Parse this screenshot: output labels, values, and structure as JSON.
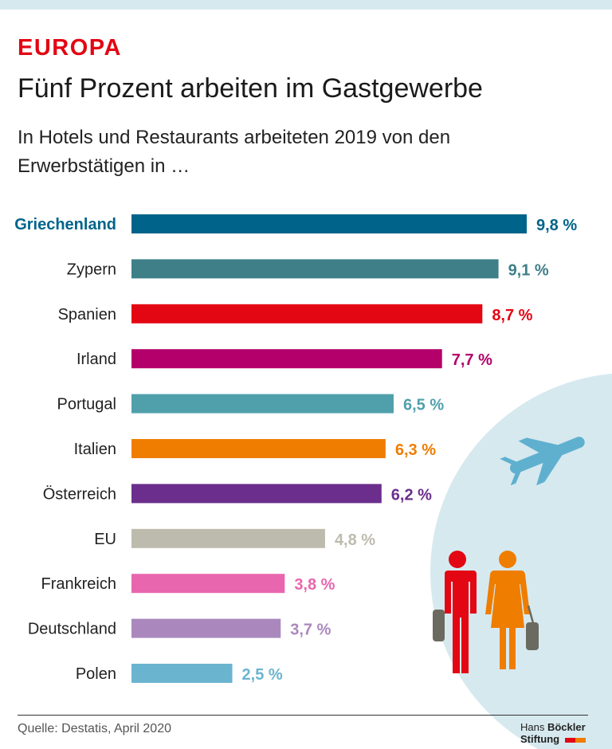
{
  "header": {
    "kicker": "EUROPA",
    "title": "Fünf Prozent arbeiten im Gastgewerbe",
    "subtitle": "In Hotels und Restaurants arbeiteten 2019 von den Erwerbstätigen in …"
  },
  "chart_data": {
    "type": "bar",
    "orientation": "horizontal",
    "categories": [
      "Griechenland",
      "Zypern",
      "Spanien",
      "Irland",
      "Portugal",
      "Italien",
      "Österreich",
      "EU",
      "Frankreich",
      "Deutschland",
      "Polen"
    ],
    "values": [
      9.8,
      9.1,
      8.7,
      7.7,
      6.5,
      6.3,
      6.2,
      4.8,
      3.8,
      3.7,
      2.5
    ],
    "labels": [
      "9,8 %",
      "9,1 %",
      "8,7 %",
      "7,7 %",
      "6,5 %",
      "6,3 %",
      "6,2 %",
      "4,8 %",
      "3,8 %",
      "3,7 %",
      "2,5 %"
    ],
    "colors": [
      "#00648a",
      "#3e7f88",
      "#e30613",
      "#b4006a",
      "#50a0ab",
      "#ef7d00",
      "#6b2e8c",
      "#bdbbad",
      "#e866ad",
      "#aa88bd",
      "#6ab4d0"
    ],
    "highlight": "Griechenland",
    "unit": "%",
    "grid": false
  },
  "footer": {
    "source": "Quelle: Destatis, April 2020",
    "logo_line1_a": "Hans ",
    "logo_line1_b": "Böckler",
    "logo_line2": "Stiftung"
  },
  "illustration": {
    "icons": [
      "airplane-icon",
      "traveler-man-icon",
      "traveler-woman-icon",
      "suitcase-icon"
    ],
    "circle_color": "#d6e9ef"
  }
}
